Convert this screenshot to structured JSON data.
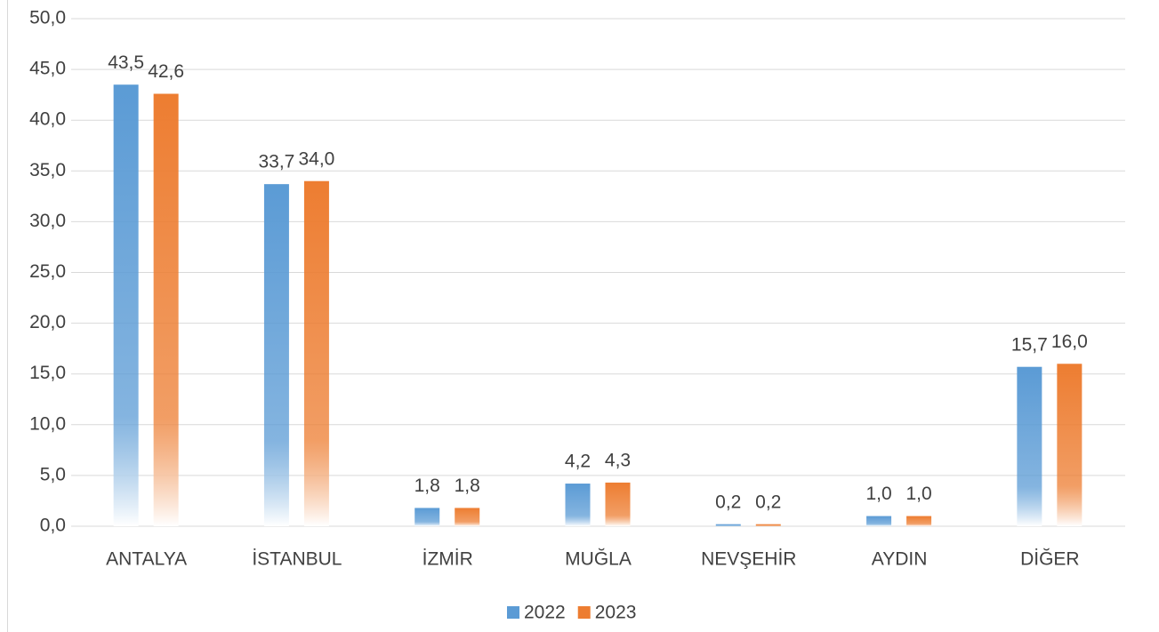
{
  "chart_data": {
    "type": "bar",
    "categories": [
      "ANTALYA",
      "İSTANBUL",
      "İZMİR",
      "MUĞLA",
      "NEVŞEHİR",
      "AYDIN",
      "DİĞER"
    ],
    "series": [
      {
        "name": "2022",
        "color": "#5b9bd5",
        "values": [
          43.5,
          33.7,
          1.8,
          4.2,
          0.2,
          1.0,
          15.7
        ],
        "value_labels": [
          "43,5",
          "33,7",
          "1,8",
          "4,2",
          "0,2",
          "1,0",
          "15,7"
        ]
      },
      {
        "name": "2023",
        "color": "#ed7d31",
        "values": [
          42.6,
          34.0,
          1.8,
          4.3,
          0.2,
          1.0,
          16.0
        ],
        "value_labels": [
          "42,6",
          "34,0",
          "1,8",
          "4,3",
          "0,2",
          "1,0",
          "16,0"
        ]
      }
    ],
    "ylim": [
      0,
      50
    ],
    "yticks": [
      {
        "value": 0,
        "label": "0,0"
      },
      {
        "value": 5,
        "label": "5,0"
      },
      {
        "value": 10,
        "label": "10,0"
      },
      {
        "value": 15,
        "label": "15,0"
      },
      {
        "value": 20,
        "label": "20,0"
      },
      {
        "value": 25,
        "label": "25,0"
      },
      {
        "value": 30,
        "label": "30,0"
      },
      {
        "value": 35,
        "label": "35,0"
      },
      {
        "value": 40,
        "label": "40,0"
      },
      {
        "value": 45,
        "label": "45,0"
      },
      {
        "value": 50,
        "label": "50,0"
      }
    ],
    "grid": true,
    "legend": "bottom"
  }
}
